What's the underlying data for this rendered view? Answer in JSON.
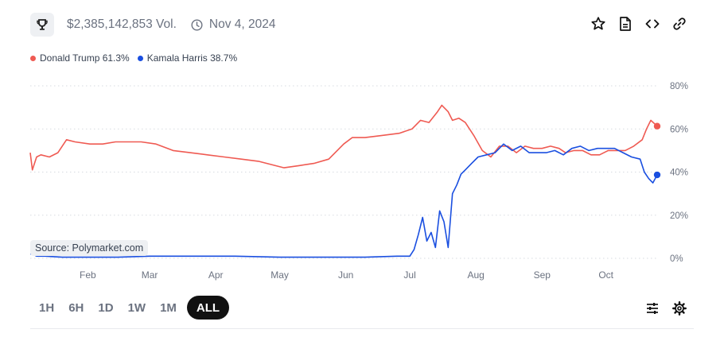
{
  "header": {
    "volume": "$2,385,142,853 Vol.",
    "date": "Nov 4, 2024",
    "icons": [
      "trophy-icon",
      "clock-icon",
      "star-icon",
      "document-icon",
      "code-icon",
      "link-icon"
    ]
  },
  "legend": {
    "items": [
      {
        "label": "Donald Trump 61.3%",
        "color": "#ef5a52"
      },
      {
        "label": "Kamala Harris 38.7%",
        "color": "#1a4fe0"
      }
    ]
  },
  "source": "Source: Polymarket.com",
  "ranges": {
    "items": [
      "1H",
      "6H",
      "1D",
      "1W",
      "1M",
      "ALL"
    ],
    "active": "ALL"
  },
  "tools": [
    "sliders-icon",
    "gear-icon"
  ],
  "chart_data": {
    "type": "line",
    "ylim": [
      0,
      80
    ],
    "yticks": [
      0,
      20,
      40,
      60,
      80
    ],
    "ytick_labels": [
      "0%",
      "20%",
      "40%",
      "60%",
      "80%"
    ],
    "xlim": [
      "2024-01-05",
      "2024-10-25"
    ],
    "xtick_labels": [
      {
        "date": "2024-02-01",
        "label": "Feb"
      },
      {
        "date": "2024-03-01",
        "label": "Mar"
      },
      {
        "date": "2024-04-01",
        "label": "Apr"
      },
      {
        "date": "2024-05-01",
        "label": "May"
      },
      {
        "date": "2024-06-01",
        "label": "Jun"
      },
      {
        "date": "2024-07-01",
        "label": "Jul"
      },
      {
        "date": "2024-08-01",
        "label": "Aug"
      },
      {
        "date": "2024-09-01",
        "label": "Sep"
      },
      {
        "date": "2024-10-01",
        "label": "Oct"
      }
    ],
    "grid": true,
    "series": [
      {
        "name": "Donald Trump",
        "color": "#ef5a52",
        "x": [
          "2024-01-05",
          "2024-01-06",
          "2024-01-08",
          "2024-01-10",
          "2024-01-14",
          "2024-01-18",
          "2024-01-22",
          "2024-01-26",
          "2024-02-02",
          "2024-02-08",
          "2024-02-14",
          "2024-02-20",
          "2024-02-26",
          "2024-03-04",
          "2024-03-12",
          "2024-03-20",
          "2024-03-28",
          "2024-04-05",
          "2024-04-13",
          "2024-04-21",
          "2024-04-29",
          "2024-05-03",
          "2024-05-10",
          "2024-05-17",
          "2024-05-24",
          "2024-05-31",
          "2024-06-04",
          "2024-06-10",
          "2024-06-18",
          "2024-06-26",
          "2024-07-02",
          "2024-07-06",
          "2024-07-10",
          "2024-07-14",
          "2024-07-16",
          "2024-07-19",
          "2024-07-21",
          "2024-07-24",
          "2024-07-27",
          "2024-07-31",
          "2024-08-04",
          "2024-08-08",
          "2024-08-12",
          "2024-08-16",
          "2024-08-20",
          "2024-08-24",
          "2024-08-28",
          "2024-09-01",
          "2024-09-05",
          "2024-09-09",
          "2024-09-12",
          "2024-09-16",
          "2024-09-20",
          "2024-09-24",
          "2024-09-28",
          "2024-10-02",
          "2024-10-06",
          "2024-10-10",
          "2024-10-14",
          "2024-10-18",
          "2024-10-20",
          "2024-10-22",
          "2024-10-25"
        ],
        "values": [
          49,
          41,
          47,
          48,
          47,
          49,
          55,
          54,
          53,
          53,
          54,
          54,
          54,
          53,
          50,
          49,
          48,
          47,
          46,
          45,
          43,
          42,
          43,
          44,
          46,
          53,
          56,
          56,
          57,
          58,
          60,
          64,
          63,
          68,
          71,
          68,
          64,
          65,
          63,
          57,
          50,
          47,
          52,
          52,
          49,
          52,
          51,
          51,
          52,
          51,
          49,
          50,
          50,
          48,
          48,
          50,
          50,
          50,
          52,
          55,
          60,
          64,
          61.3
        ]
      },
      {
        "name": "Kamala Harris",
        "color": "#1a4fe0",
        "x": [
          "2024-01-05",
          "2024-01-06",
          "2024-01-08",
          "2024-01-12",
          "2024-01-20",
          "2024-02-01",
          "2024-02-15",
          "2024-03-01",
          "2024-03-20",
          "2024-04-10",
          "2024-05-01",
          "2024-05-20",
          "2024-06-10",
          "2024-06-25",
          "2024-07-01",
          "2024-07-03",
          "2024-07-05",
          "2024-07-07",
          "2024-07-09",
          "2024-07-11",
          "2024-07-13",
          "2024-07-15",
          "2024-07-17",
          "2024-07-19",
          "2024-07-21",
          "2024-07-23",
          "2024-07-25",
          "2024-07-27",
          "2024-07-30",
          "2024-08-02",
          "2024-08-06",
          "2024-08-10",
          "2024-08-14",
          "2024-08-18",
          "2024-08-22",
          "2024-08-26",
          "2024-08-30",
          "2024-09-03",
          "2024-09-07",
          "2024-09-11",
          "2024-09-15",
          "2024-09-19",
          "2024-09-23",
          "2024-09-27",
          "2024-10-01",
          "2024-10-05",
          "2024-10-09",
          "2024-10-13",
          "2024-10-17",
          "2024-10-19",
          "2024-10-21",
          "2024-10-23",
          "2024-10-25"
        ],
        "values": [
          2,
          2,
          1,
          1,
          0.5,
          0.5,
          0.5,
          1,
          1,
          1,
          0.5,
          0.5,
          0.5,
          1,
          1,
          4,
          11,
          19,
          8,
          12,
          5,
          22,
          17,
          5,
          30,
          34,
          39,
          41,
          44,
          47,
          48,
          49,
          53,
          50,
          52,
          49,
          49,
          49,
          50,
          48,
          51,
          52,
          50,
          51,
          51,
          51,
          49,
          47,
          46,
          40,
          37,
          35,
          38.7
        ]
      }
    ]
  }
}
